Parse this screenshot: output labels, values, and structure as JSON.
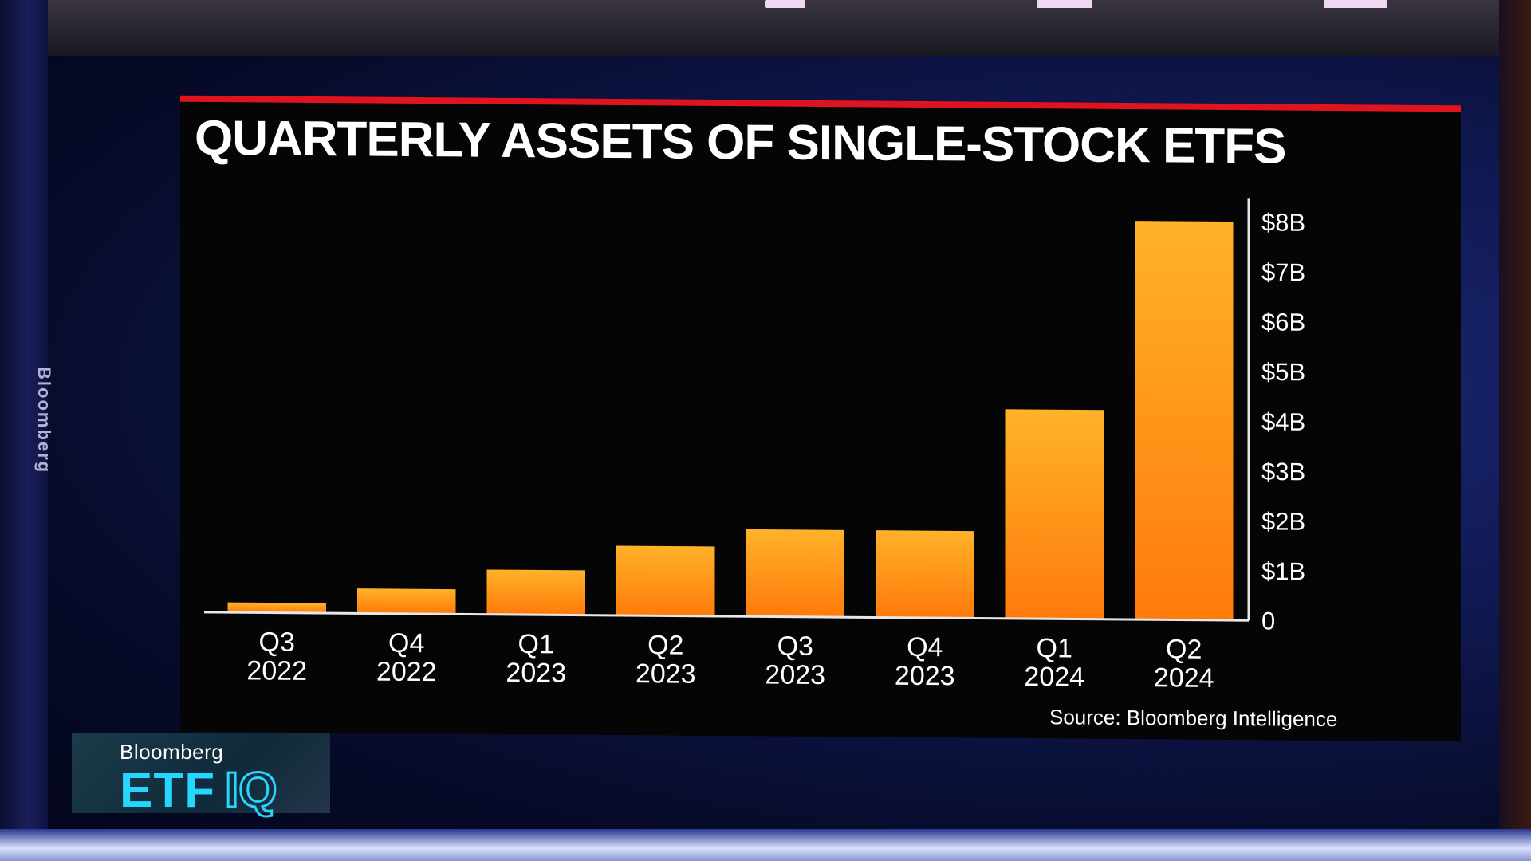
{
  "chart_data": {
    "type": "bar",
    "title": "QUARTERLY ASSETS OF SINGLE-STOCK ETFS",
    "categories": [
      {
        "quarter": "Q3",
        "year": "2022"
      },
      {
        "quarter": "Q4",
        "year": "2022"
      },
      {
        "quarter": "Q1",
        "year": "2023"
      },
      {
        "quarter": "Q2",
        "year": "2023"
      },
      {
        "quarter": "Q3",
        "year": "2023"
      },
      {
        "quarter": "Q4",
        "year": "2023"
      },
      {
        "quarter": "Q1",
        "year": "2024"
      },
      {
        "quarter": "Q2",
        "year": "2024"
      }
    ],
    "values": [
      0.2,
      0.5,
      0.9,
      1.4,
      1.75,
      1.75,
      4.2,
      8.0
    ],
    "unit": "billions USD",
    "ylim": [
      0,
      8
    ],
    "yticks": [
      {
        "value": 0,
        "label": "0"
      },
      {
        "value": 1,
        "label": "$1B"
      },
      {
        "value": 2,
        "label": "$2B"
      },
      {
        "value": 3,
        "label": "$3B"
      },
      {
        "value": 4,
        "label": "$4B"
      },
      {
        "value": 5,
        "label": "$5B"
      },
      {
        "value": 6,
        "label": "$6B"
      },
      {
        "value": 7,
        "label": "$7B"
      },
      {
        "value": 8,
        "label": "$8B"
      }
    ],
    "yaxis_position": "right",
    "grid": false,
    "legend": "none",
    "bar_color_top": "#ffb22a",
    "bar_color_bottom": "#ff7a0a",
    "source": "Source: Bloomberg Intelligence"
  },
  "branding": {
    "network": "Bloomberg",
    "show_etf": "ETF",
    "show_iq": "IQ",
    "vertical_text": "Bloomberg",
    "accent_color": "#27d6ff",
    "title_bar_color": "#e0141e"
  }
}
